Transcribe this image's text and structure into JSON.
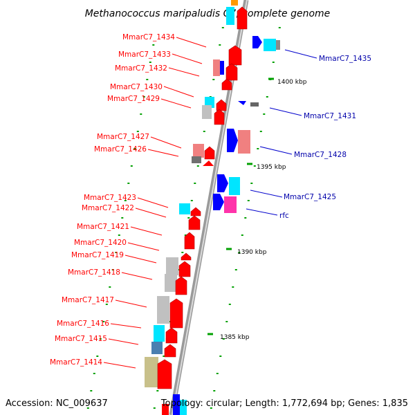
{
  "title": "Methanococcus maripaludis C7, complete genome",
  "accession": "Accession: NC_009637",
  "topology": "Topology: circular; Length: 1,772,694 bp; Genes: 1,835",
  "scale_labels": [
    "1400 kbp",
    "1395 kbp",
    "1390 kbp",
    "1385 kbp"
  ],
  "left_labels": [
    "MmarC7_1434",
    "MmarC7_1433",
    "MmarC7_1432",
    "MmarC7_1430",
    "MmarC7_1429",
    "MmarC7_1427",
    "MmarC7_1426",
    "MmarC7_1423",
    "MmarC7_1422",
    "MmarC7_1421",
    "MmarC7_1420",
    "MmarC7_1419",
    "MmarC7_1418",
    "MmarC7_1417",
    "MmarC7_1416",
    "MmarC7_1415",
    "MmarC7_1414"
  ],
  "right_labels": [
    "MmarC7_1435",
    "MmarC7_1431",
    "MmarC7_1428",
    "MmarC7_1425",
    "rfc"
  ],
  "colors": {
    "forward": "#ff0000",
    "reverse": "#0000ff",
    "cyan": "#00e5ff",
    "pink": "#f08080",
    "gray": "#c0c0c0",
    "magenta": "#ff33aa",
    "olive": "#c8c08a",
    "steel": "#4a7fb0",
    "tick": "#00a000"
  }
}
